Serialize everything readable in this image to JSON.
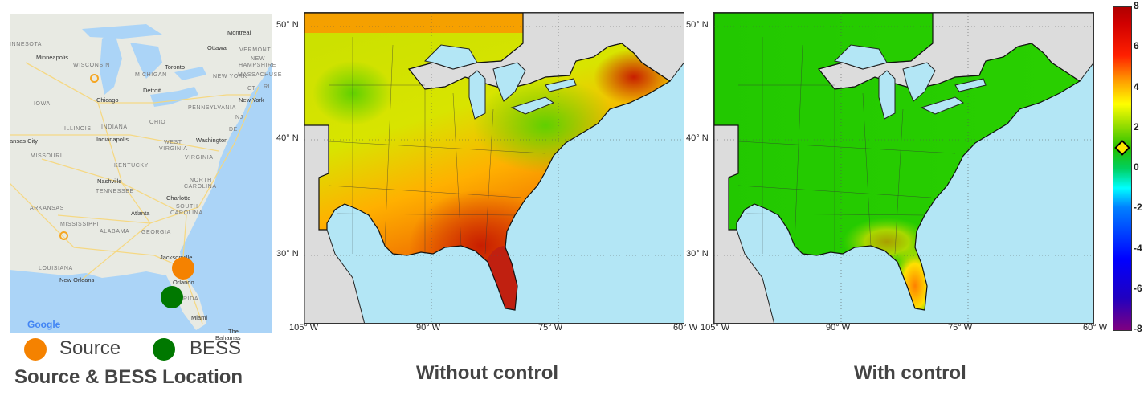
{
  "location_map": {
    "labels": [
      "Montreal",
      "Ottawa",
      "INNESOTA",
      "Minneapolis",
      "WISCONSIN",
      "MICHIGAN",
      "Toronto",
      "NEW YORK",
      "VERMONT",
      "NEW",
      "HAMPSHIRE",
      "MASSACHUSE",
      "CT",
      "RI",
      "Detroit",
      "Chicago",
      "IOWA",
      "New York",
      "PENNSYLVANIA",
      "NJ",
      "DE",
      "ILLINOIS",
      "INDIANA",
      "OHIO",
      "Indianapolis",
      "Washington",
      "WEST",
      "VIRGINIA",
      "ansas City",
      "MISSOURI",
      "VIRGINIA",
      "KENTUCKY",
      "Nashville",
      "NORTH",
      "CAROLINA",
      "TENNESSEE",
      "Charlotte",
      "ARKANSAS",
      "SOUTH",
      "CAROLINA",
      "Atlanta",
      "MISSISSIPPI",
      "ALABAMA",
      "GEORGIA",
      "LOUISIANA",
      "Jacksonville",
      "New Orleans",
      "Orlando",
      "RIDA",
      "Miami",
      "The",
      "Bahamas"
    ],
    "logo": "Google",
    "source_color": "#f58200",
    "bess_color": "#007800"
  },
  "legend": {
    "source_label": "Source",
    "bess_label": "BESS"
  },
  "titles": {
    "location": "Source & BESS Location",
    "without": "Without control",
    "with": "With control"
  },
  "axes": {
    "lat_ticks": [
      "50° N",
      "40° N",
      "30° N"
    ],
    "lon_ticks": [
      "105° W",
      "90° W",
      "75° W",
      "60° W"
    ]
  },
  "colorbar": {
    "ticks": [
      "8",
      "6",
      "4",
      "2",
      "0",
      "-2",
      "-4",
      "-6",
      "-8"
    ],
    "range": [
      -8,
      8
    ],
    "marker_value": 1,
    "colormap": "jet"
  }
}
